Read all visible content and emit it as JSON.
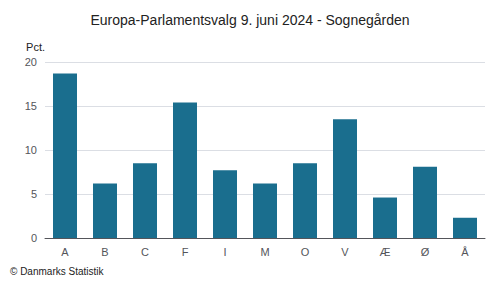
{
  "chart_data": {
    "type": "bar",
    "title": "Europa-Parlamentsvalg 9. juni 2024 - Sognegården",
    "categories": [
      "A",
      "B",
      "C",
      "F",
      "I",
      "M",
      "O",
      "V",
      "Æ",
      "Ø",
      "Å"
    ],
    "values": [
      18.7,
      6.2,
      8.5,
      15.4,
      7.7,
      6.2,
      8.5,
      13.5,
      4.6,
      8.1,
      2.3
    ],
    "color": "#1a6e8e",
    "ylabel": "Pct.",
    "ylim": [
      0,
      20
    ],
    "yticks": [
      0,
      5,
      10,
      15,
      20
    ],
    "grid": true,
    "annotations": [
      "© Danmarks Statistik"
    ]
  }
}
